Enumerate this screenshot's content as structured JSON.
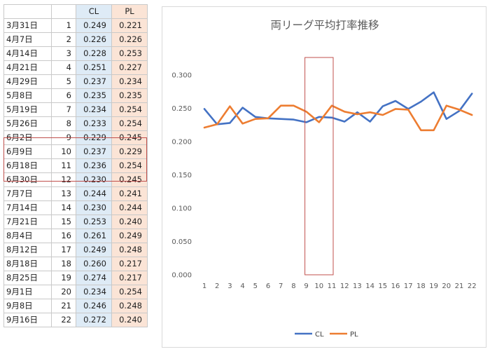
{
  "table": {
    "headers": [
      "",
      "",
      "CL",
      "PL"
    ],
    "rows": [
      {
        "date": "3月31日",
        "week": "1",
        "cl": "0.249",
        "pl": "0.221"
      },
      {
        "date": "4月7日",
        "week": "2",
        "cl": "0.226",
        "pl": "0.226"
      },
      {
        "date": "4月14日",
        "week": "3",
        "cl": "0.228",
        "pl": "0.253"
      },
      {
        "date": "4月21日",
        "week": "4",
        "cl": "0.251",
        "pl": "0.227"
      },
      {
        "date": "4月29日",
        "week": "5",
        "cl": "0.237",
        "pl": "0.234"
      },
      {
        "date": "5月8日",
        "week": "6",
        "cl": "0.235",
        "pl": "0.235"
      },
      {
        "date": "5月19日",
        "week": "7",
        "cl": "0.234",
        "pl": "0.254"
      },
      {
        "date": "5月26日",
        "week": "8",
        "cl": "0.233",
        "pl": "0.254"
      },
      {
        "date": "6月2日",
        "week": "9",
        "cl": "0.229",
        "pl": "0.245"
      },
      {
        "date": "6月9日",
        "week": "10",
        "cl": "0.237",
        "pl": "0.229"
      },
      {
        "date": "6月18日",
        "week": "11",
        "cl": "0.236",
        "pl": "0.254"
      },
      {
        "date": "6月30日",
        "week": "12",
        "cl": "0.230",
        "pl": "0.245"
      },
      {
        "date": "7月7日",
        "week": "13",
        "cl": "0.244",
        "pl": "0.241"
      },
      {
        "date": "7月14日",
        "week": "14",
        "cl": "0.230",
        "pl": "0.244"
      },
      {
        "date": "7月21日",
        "week": "15",
        "cl": "0.253",
        "pl": "0.240"
      },
      {
        "date": "8月4日",
        "week": "16",
        "cl": "0.261",
        "pl": "0.249"
      },
      {
        "date": "8月12日",
        "week": "17",
        "cl": "0.249",
        "pl": "0.248"
      },
      {
        "date": "8月18日",
        "week": "18",
        "cl": "0.260",
        "pl": "0.217"
      },
      {
        "date": "8月25日",
        "week": "19",
        "cl": "0.274",
        "pl": "0.217"
      },
      {
        "date": "9月1日",
        "week": "20",
        "cl": "0.234",
        "pl": "0.254"
      },
      {
        "date": "9月8日",
        "week": "21",
        "cl": "0.246",
        "pl": "0.248"
      },
      {
        "date": "9月16日",
        "week": "22",
        "cl": "0.272",
        "pl": "0.240"
      }
    ],
    "highlight_weeks": [
      9,
      11
    ]
  },
  "chart_data": {
    "type": "line",
    "title": "両リーグ平均打率推移",
    "xlabel": "",
    "ylabel": "",
    "categories": [
      "1",
      "2",
      "3",
      "4",
      "5",
      "6",
      "7",
      "8",
      "9",
      "10",
      "11",
      "12",
      "13",
      "14",
      "15",
      "16",
      "17",
      "18",
      "19",
      "20",
      "21",
      "22"
    ],
    "series": [
      {
        "name": "CL",
        "color": "#4472c4",
        "values": [
          0.249,
          0.226,
          0.228,
          0.251,
          0.237,
          0.235,
          0.234,
          0.233,
          0.229,
          0.237,
          0.236,
          0.23,
          0.244,
          0.23,
          0.253,
          0.261,
          0.249,
          0.26,
          0.274,
          0.234,
          0.246,
          0.272
        ]
      },
      {
        "name": "PL",
        "color": "#ed7d31",
        "values": [
          0.221,
          0.226,
          0.253,
          0.227,
          0.234,
          0.235,
          0.254,
          0.254,
          0.245,
          0.229,
          0.254,
          0.245,
          0.241,
          0.244,
          0.24,
          0.249,
          0.248,
          0.217,
          0.217,
          0.254,
          0.248,
          0.24
        ]
      }
    ],
    "y_ticks": [
      "0.000",
      "0.050",
      "0.100",
      "0.150",
      "0.200",
      "0.250",
      "0.300"
    ],
    "ylim": [
      0,
      0.3
    ],
    "highlight_range": [
      9,
      11
    ],
    "highlight_color": "#c0504d",
    "gridlines": false,
    "legend": "bottom"
  }
}
